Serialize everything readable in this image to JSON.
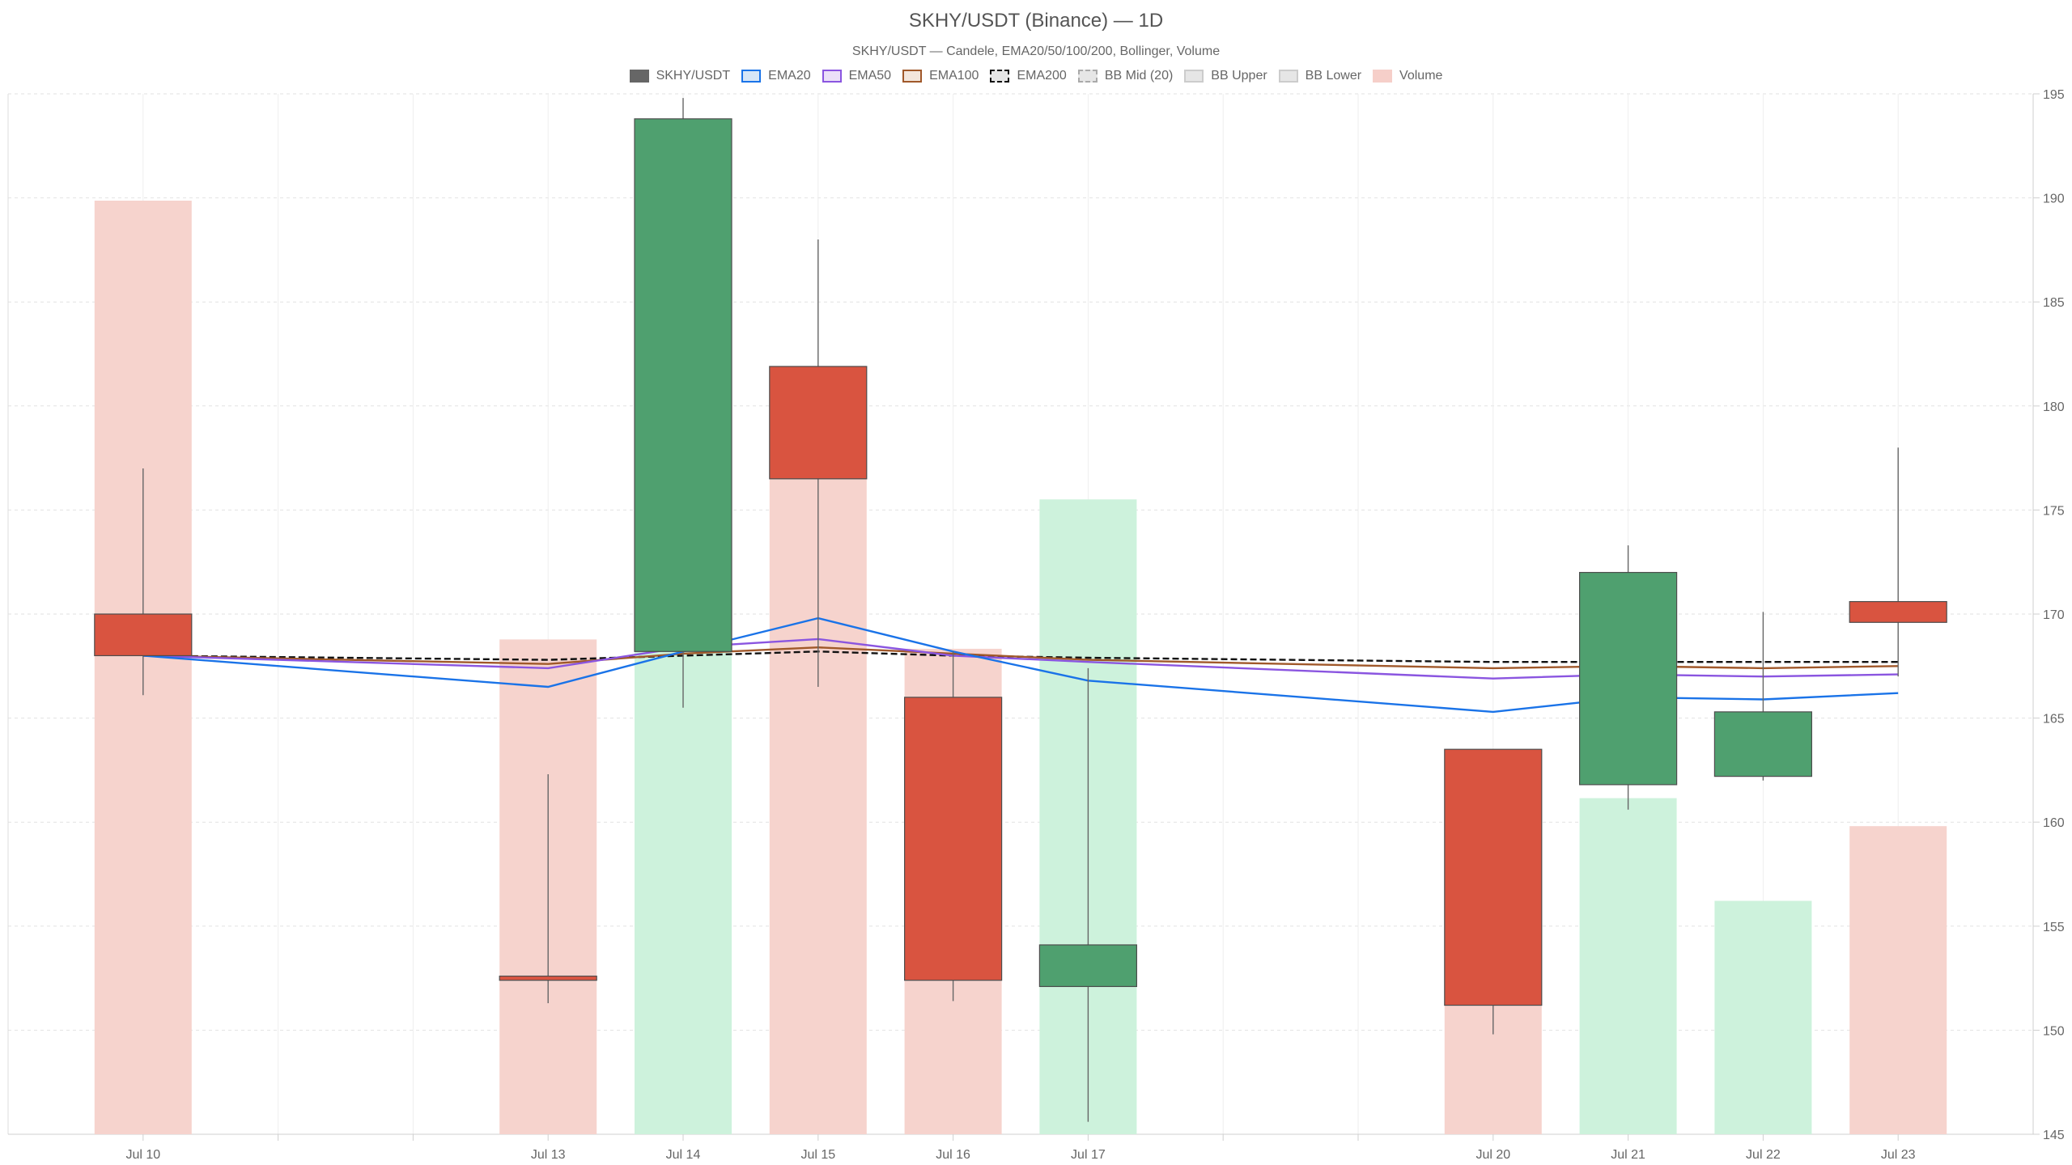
{
  "chart_data": {
    "type": "candlestick",
    "title": "SKHY/USDT (Binance) — 1D",
    "subtitle": "SKHY/USDT — Candele, EMA20/50/100/200, Bollinger, Volume",
    "legend": [
      {
        "label": "SKHY/USDT",
        "fill": "#666666",
        "stroke": "#666666",
        "dashed": false
      },
      {
        "label": "EMA20",
        "fill": "#d6e6f7",
        "stroke": "#1a73e8",
        "dashed": false
      },
      {
        "label": "EMA50",
        "fill": "#ebe0f8",
        "stroke": "#8a55e0",
        "dashed": false
      },
      {
        "label": "EMA100",
        "fill": "#f3e6dc",
        "stroke": "#a0582a",
        "dashed": false
      },
      {
        "label": "EMA200",
        "fill": "#e6e6e6",
        "stroke": "#111111",
        "dashed": true
      },
      {
        "label": "BB Mid (20)",
        "fill": "#e6e6e6",
        "stroke": "#aaaaaa",
        "dashed": true
      },
      {
        "label": "BB Upper",
        "fill": "#e6e6e6",
        "stroke": "#cccccc",
        "dashed": false
      },
      {
        "label": "BB Lower",
        "fill": "#e6e6e6",
        "stroke": "#cccccc",
        "dashed": false
      },
      {
        "label": "Volume",
        "fill": "#f6cfc9",
        "stroke": "#f6cfc9",
        "dashed": false
      }
    ],
    "x_domain": [
      "2026-07-09",
      "2026-07-24"
    ],
    "dates": [
      "2026-07-10",
      "2026-07-13",
      "2026-07-14",
      "2026-07-15",
      "2026-07-16",
      "2026-07-17",
      "2026-07-20",
      "2026-07-21",
      "2026-07-22",
      "2026-07-23"
    ],
    "tick_labels": [
      "Jul 10",
      "Jul 13",
      "Jul 14",
      "Jul 15",
      "Jul 16",
      "Jul 17",
      "Jul 20",
      "Jul 21",
      "Jul 22",
      "Jul 23"
    ],
    "ohlc": [
      {
        "open": 170.0,
        "high": 177.0,
        "low": 166.1,
        "close": 168.0
      },
      {
        "open": 152.6,
        "high": 162.3,
        "low": 151.3,
        "close": 152.4
      },
      {
        "open": 168.2,
        "high": 194.8,
        "low": 165.5,
        "close": 193.8
      },
      {
        "open": 181.9,
        "high": 188.0,
        "low": 166.5,
        "close": 176.5
      },
      {
        "open": 166.0,
        "high": 168.2,
        "low": 151.4,
        "close": 152.4
      },
      {
        "open": 152.1,
        "high": 167.4,
        "low": 145.6,
        "close": 154.1
      },
      {
        "open": 163.5,
        "high": 163.5,
        "low": 149.8,
        "close": 151.2
      },
      {
        "open": 161.8,
        "high": 173.3,
        "low": 160.6,
        "close": 172.0
      },
      {
        "open": 162.2,
        "high": 170.1,
        "low": 162.0,
        "close": 165.3
      },
      {
        "open": 170.6,
        "high": 178.0,
        "low": 167.0,
        "close": 169.6
      }
    ],
    "ema20": [
      168.0,
      166.5,
      168.2,
      169.8,
      168.2,
      166.8,
      165.3,
      166.0,
      165.9,
      166.2
    ],
    "ema50": [
      168.0,
      167.4,
      168.4,
      168.8,
      168.0,
      167.7,
      166.9,
      167.1,
      167.0,
      167.1
    ],
    "ema100": [
      168.0,
      167.6,
      168.1,
      168.4,
      168.1,
      167.8,
      167.4,
      167.5,
      167.4,
      167.5
    ],
    "ema200": [
      168.0,
      167.8,
      168.0,
      168.2,
      168.0,
      167.9,
      167.7,
      167.7,
      167.7,
      167.7
    ],
    "volume_rel": [
      1.0,
      0.53,
      0.64,
      0.71,
      0.52,
      0.68,
      0.41,
      0.36,
      0.25,
      0.33
    ],
    "volume_direction": [
      "down",
      "down",
      "up",
      "down",
      "down",
      "up",
      "down",
      "up",
      "up",
      "down"
    ],
    "y_axis": {
      "min": 145,
      "max": 195,
      "ticks": [
        145,
        150,
        155,
        160,
        165,
        170,
        175,
        180,
        185,
        190,
        195
      ],
      "position": "right"
    },
    "grid": true,
    "legend_position": "top-center",
    "colors": {
      "up": "#4fa06f",
      "down": "#d95440",
      "candle_border": "#4d4d4d",
      "volume_up": "#cdf2dc",
      "volume_down": "#f6d3cd",
      "ema20": "#1a73e8",
      "ema50": "#8a55e0",
      "ema100": "#a0582a",
      "ema200": "#111111"
    }
  }
}
